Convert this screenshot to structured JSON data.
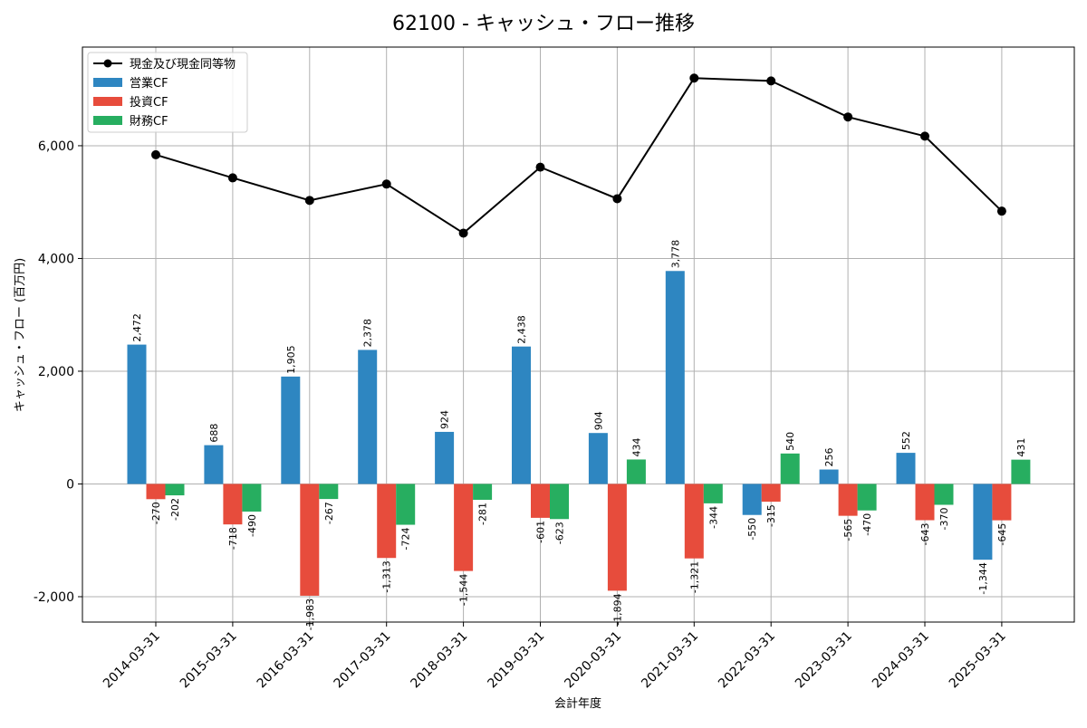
{
  "chart_data": {
    "type": "bar",
    "title": "62100 - キャッシュ・フロー推移",
    "xlabel": "会計年度",
    "ylabel": "キャッシュ・フロー (百万円)",
    "ylim": [
      -2450,
      7750
    ],
    "yticks": [
      -2000,
      0,
      2000,
      4000,
      6000
    ],
    "ytick_labels": [
      "-2,000",
      "0",
      "2,000",
      "4,000",
      "6,000"
    ],
    "grid": true,
    "legend_position": "top-left",
    "categories": [
      "2014-03-31",
      "2015-03-31",
      "2016-03-31",
      "2017-03-31",
      "2018-03-31",
      "2019-03-31",
      "2020-03-31",
      "2021-03-31",
      "2022-03-31",
      "2023-03-31",
      "2024-03-31",
      "2025-03-31"
    ],
    "series": [
      {
        "name": "営業CF",
        "kind": "bar",
        "color": "#2e86c1",
        "values": [
          2472,
          688,
          1905,
          2378,
          924,
          2438,
          904,
          3778,
          -550,
          256,
          552,
          -1344
        ],
        "labels": [
          "2,472",
          "688",
          "1,905",
          "2,378",
          "924",
          "2,438",
          "904",
          "3,778",
          "-550",
          "256",
          "552",
          "-1,344"
        ]
      },
      {
        "name": "投資CF",
        "kind": "bar",
        "color": "#e74c3c",
        "values": [
          -270,
          -718,
          -1983,
          -1313,
          -1544,
          -601,
          -1894,
          -1321,
          -315,
          -565,
          -643,
          -645
        ],
        "labels": [
          "-270",
          "-718",
          "-1,983",
          "-1,313",
          "-1,544",
          "-601",
          "-1,894",
          "-1,321",
          "-315",
          "-565",
          "-643",
          "-645"
        ]
      },
      {
        "name": "財務CF",
        "kind": "bar",
        "color": "#27ae60",
        "values": [
          -202,
          -490,
          -267,
          -724,
          -281,
          -623,
          434,
          -344,
          540,
          -470,
          -370,
          431
        ],
        "labels": [
          "-202",
          "-490",
          "-267",
          "-724",
          "-281",
          "-623",
          "434",
          "-344",
          "540",
          "-470",
          "-370",
          "431"
        ]
      },
      {
        "name": "現金及び現金同等物",
        "kind": "line",
        "color": "#000000",
        "values": [
          5840,
          5430,
          5030,
          5320,
          4450,
          5620,
          5060,
          7200,
          7150,
          6510,
          6170,
          4840
        ]
      }
    ]
  }
}
